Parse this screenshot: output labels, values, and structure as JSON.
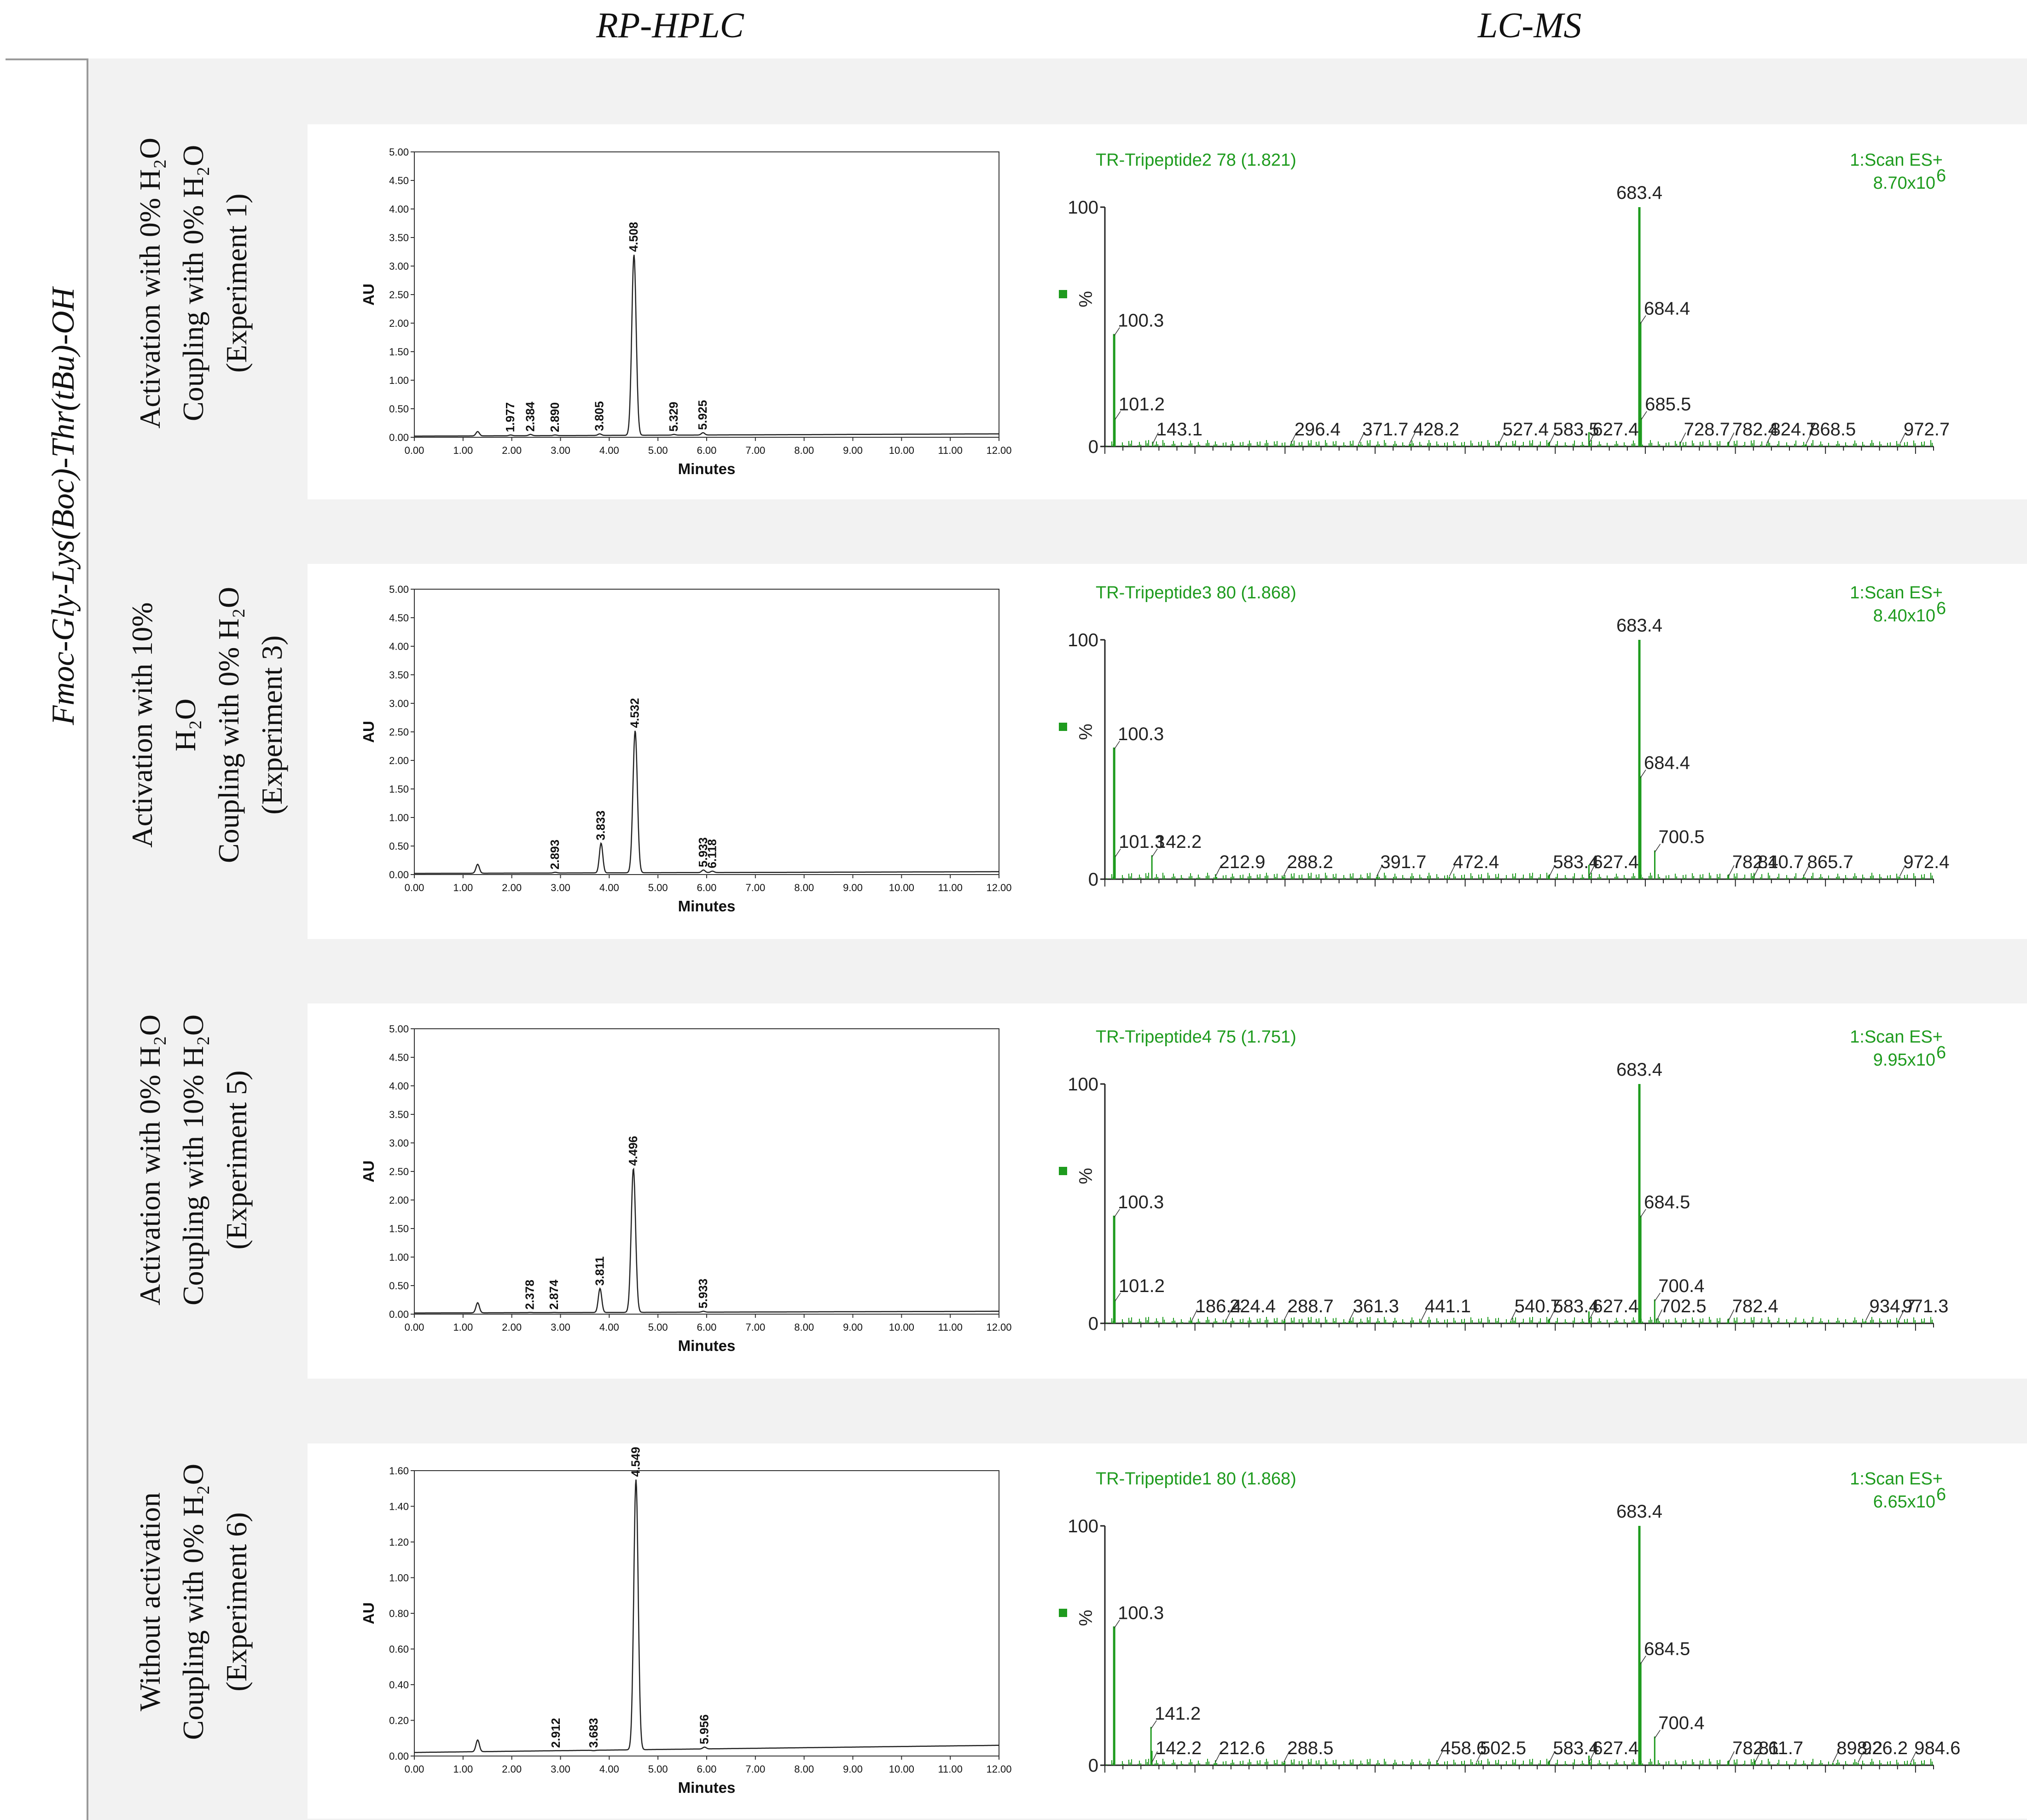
{
  "header": {
    "col_hplc": "RP-HPLC",
    "col_lcms": "LC-MS"
  },
  "peptide": "Fmoc-Gly-Lys(Boc)-Thr(tBu)-OH",
  "rows": [
    {
      "label_lines": [
        "Activation with 0% H₂O",
        "Coupling with 0% H₂O",
        "(Experiment 1)"
      ]
    },
    {
      "label_lines": [
        "Activation with 10%",
        "H₂O",
        "Coupling with 0% H₂O",
        "(Experiment 3)"
      ]
    },
    {
      "label_lines": [
        "Activation with 0% H₂O",
        "Coupling with 10% H₂O",
        "(Experiment 5)"
      ]
    },
    {
      "label_lines": [
        "Without activation",
        "Coupling with 0% H₂O",
        "(Experiment 6)"
      ]
    }
  ],
  "chart_data": [
    {
      "type": "line",
      "panel": "RP-HPLC Experiment 1",
      "xlabel": "Minutes",
      "ylabel": "AU",
      "xlim": [
        0,
        12
      ],
      "ylim": [
        0,
        5
      ],
      "xticks": [
        "0.00",
        "1.00",
        "2.00",
        "3.00",
        "4.00",
        "5.00",
        "6.00",
        "7.00",
        "8.00",
        "9.00",
        "10.00",
        "11.00",
        "12.00"
      ],
      "yticks": [
        "0.00",
        "0.50",
        "1.00",
        "1.50",
        "2.00",
        "2.50",
        "3.00",
        "3.50",
        "4.00",
        "4.50",
        "5.00"
      ],
      "baseline": [
        [
          0,
          0.02
        ],
        [
          12,
          0.06
        ]
      ],
      "peaks": [
        {
          "x": 1.3,
          "y": 0.1,
          "label": ""
        },
        {
          "x": 1.977,
          "y": 0.04,
          "label": "1.977"
        },
        {
          "x": 2.384,
          "y": 0.05,
          "label": "2.384"
        },
        {
          "x": 2.89,
          "y": 0.04,
          "label": "2.890"
        },
        {
          "x": 3.805,
          "y": 0.06,
          "label": "3.805"
        },
        {
          "x": 4.508,
          "y": 3.2,
          "label": "4.508"
        },
        {
          "x": 5.329,
          "y": 0.05,
          "label": "5.329"
        },
        {
          "x": 5.925,
          "y": 0.08,
          "label": "5.925"
        }
      ]
    },
    {
      "type": "line",
      "panel": "RP-HPLC Experiment 3",
      "xlabel": "Minutes",
      "ylabel": "AU",
      "xlim": [
        0,
        12
      ],
      "ylim": [
        0,
        5
      ],
      "xticks": [
        "0.00",
        "1.00",
        "2.00",
        "3.00",
        "4.00",
        "5.00",
        "6.00",
        "7.00",
        "8.00",
        "9.00",
        "10.00",
        "11.00",
        "12.00"
      ],
      "yticks": [
        "0.00",
        "0.50",
        "1.00",
        "1.50",
        "2.00",
        "2.50",
        "3.00",
        "3.50",
        "4.00",
        "4.50",
        "5.00"
      ],
      "baseline": [
        [
          0,
          0.02
        ],
        [
          12,
          0.05
        ]
      ],
      "peaks": [
        {
          "x": 1.3,
          "y": 0.18,
          "label": ""
        },
        {
          "x": 2.893,
          "y": 0.04,
          "label": "2.893"
        },
        {
          "x": 3.833,
          "y": 0.55,
          "label": "3.833"
        },
        {
          "x": 4.532,
          "y": 2.52,
          "label": "4.532"
        },
        {
          "x": 5.933,
          "y": 0.08,
          "label": "5.933"
        },
        {
          "x": 6.118,
          "y": 0.06,
          "label": "6.118"
        }
      ]
    },
    {
      "type": "line",
      "panel": "RP-HPLC Experiment 5",
      "xlabel": "Minutes",
      "ylabel": "AU",
      "xlim": [
        0,
        12
      ],
      "ylim": [
        0,
        5
      ],
      "xticks": [
        "0.00",
        "1.00",
        "2.00",
        "3.00",
        "4.00",
        "5.00",
        "6.00",
        "7.00",
        "8.00",
        "9.00",
        "10.00",
        "11.00",
        "12.00"
      ],
      "yticks": [
        "0.00",
        "0.50",
        "1.00",
        "1.50",
        "2.00",
        "2.50",
        "3.00",
        "3.50",
        "4.00",
        "4.50",
        "5.00"
      ],
      "baseline": [
        [
          0,
          0.02
        ],
        [
          12,
          0.05
        ]
      ],
      "peaks": [
        {
          "x": 1.3,
          "y": 0.2,
          "label": ""
        },
        {
          "x": 2.378,
          "y": 0.03,
          "label": "2.378"
        },
        {
          "x": 2.874,
          "y": 0.03,
          "label": "2.874"
        },
        {
          "x": 3.811,
          "y": 0.45,
          "label": "3.811"
        },
        {
          "x": 4.496,
          "y": 2.55,
          "label": "4.496"
        },
        {
          "x": 5.933,
          "y": 0.05,
          "label": "5.933"
        }
      ]
    },
    {
      "type": "line",
      "panel": "RP-HPLC Experiment 6",
      "xlabel": "Minutes",
      "ylabel": "AU",
      "xlim": [
        0,
        12
      ],
      "ylim": [
        0,
        1.6
      ],
      "xticks": [
        "0.00",
        "1.00",
        "2.00",
        "3.00",
        "4.00",
        "5.00",
        "6.00",
        "7.00",
        "8.00",
        "9.00",
        "10.00",
        "11.00",
        "12.00"
      ],
      "yticks": [
        "0.00",
        "0.20",
        "0.40",
        "0.60",
        "0.80",
        "1.00",
        "1.20",
        "1.40",
        "1.60"
      ],
      "baseline": [
        [
          0,
          0.02
        ],
        [
          12,
          0.06
        ]
      ],
      "peaks": [
        {
          "x": 1.3,
          "y": 0.09,
          "label": ""
        },
        {
          "x": 2.912,
          "y": 0.03,
          "label": "2.912"
        },
        {
          "x": 3.683,
          "y": 0.03,
          "label": "3.683"
        },
        {
          "x": 4.549,
          "y": 1.55,
          "label": "4.549"
        },
        {
          "x": 5.956,
          "y": 0.05,
          "label": "5.956"
        }
      ]
    },
    {
      "type": "bar",
      "panel": "LC-MS Experiment 1",
      "sample": "TR-Tripeptide2 78 (1.821)",
      "scan": "1:Scan ES+",
      "intensity_mantissa": "8.70x10",
      "intensity_exp": "6",
      "ylabel": "%",
      "yticks": [
        "0",
        "100"
      ],
      "xlim": [
        90,
        1010
      ],
      "ylim": [
        0,
        100
      ],
      "peaks": [
        {
          "x": 100.3,
          "y": 47,
          "label": "100.3"
        },
        {
          "x": 101.2,
          "y": 12,
          "label": "101.2"
        },
        {
          "x": 143.1,
          "y": 2,
          "label": "143.1"
        },
        {
          "x": 296.4,
          "y": 1,
          "label": "296.4"
        },
        {
          "x": 371.7,
          "y": 1,
          "label": "371.7"
        },
        {
          "x": 428.2,
          "y": 1,
          "label": "428.2"
        },
        {
          "x": 527.4,
          "y": 2,
          "label": "527.4"
        },
        {
          "x": 583.5,
          "y": 2,
          "label": "583.5"
        },
        {
          "x": 627.4,
          "y": 6,
          "label": "627.4"
        },
        {
          "x": 683.4,
          "y": 100,
          "label": "683.4"
        },
        {
          "x": 684.4,
          "y": 52,
          "label": "684.4"
        },
        {
          "x": 685.5,
          "y": 12,
          "label": "685.5"
        },
        {
          "x": 728.7,
          "y": 2,
          "label": "728.7"
        },
        {
          "x": 782.4,
          "y": 2,
          "label": "782.4"
        },
        {
          "x": 824.7,
          "y": 1,
          "label": "824.7"
        },
        {
          "x": 868.5,
          "y": 1,
          "label": "868.5"
        },
        {
          "x": 972.7,
          "y": 1,
          "label": "972.7"
        }
      ]
    },
    {
      "type": "bar",
      "panel": "LC-MS Experiment 3",
      "sample": "TR-Tripeptide3 80 (1.868)",
      "scan": "1:Scan ES+",
      "intensity_mantissa": "8.40x10",
      "intensity_exp": "6",
      "ylabel": "%",
      "yticks": [
        "0",
        "100"
      ],
      "xlim": [
        90,
        1010
      ],
      "ylim": [
        0,
        100
      ],
      "peaks": [
        {
          "x": 100.3,
          "y": 55,
          "label": "100.3"
        },
        {
          "x": 101.3,
          "y": 10,
          "label": "101.3"
        },
        {
          "x": 142.2,
          "y": 10,
          "label": "142.2"
        },
        {
          "x": 212.9,
          "y": 1,
          "label": "212.9"
        },
        {
          "x": 288.2,
          "y": 1,
          "label": "288.2"
        },
        {
          "x": 391.7,
          "y": 1,
          "label": "391.7"
        },
        {
          "x": 472.4,
          "y": 1,
          "label": "472.4"
        },
        {
          "x": 583.4,
          "y": 2,
          "label": "583.4"
        },
        {
          "x": 627.4,
          "y": 6,
          "label": "627.4"
        },
        {
          "x": 683.4,
          "y": 100,
          "label": "683.4"
        },
        {
          "x": 684.4,
          "y": 43,
          "label": "684.4"
        },
        {
          "x": 700.5,
          "y": 12,
          "label": "700.5"
        },
        {
          "x": 782.4,
          "y": 2,
          "label": "782.4"
        },
        {
          "x": 810.7,
          "y": 2,
          "label": "810.7"
        },
        {
          "x": 865.7,
          "y": 1,
          "label": "865.7"
        },
        {
          "x": 972.4,
          "y": 1,
          "label": "972.4"
        }
      ]
    },
    {
      "type": "bar",
      "panel": "LC-MS Experiment 5",
      "sample": "TR-Tripeptide4 75 (1.751)",
      "scan": "1:Scan ES+",
      "intensity_mantissa": "9.95x10",
      "intensity_exp": "6",
      "ylabel": "%",
      "yticks": [
        "0",
        "100"
      ],
      "xlim": [
        90,
        1010
      ],
      "ylim": [
        0,
        100
      ],
      "peaks": [
        {
          "x": 100.3,
          "y": 45,
          "label": "100.3"
        },
        {
          "x": 101.2,
          "y": 10,
          "label": "101.2"
        },
        {
          "x": 186.4,
          "y": 1,
          "label": "186.4"
        },
        {
          "x": 224.4,
          "y": 1,
          "label": "224.4"
        },
        {
          "x": 288.7,
          "y": 1,
          "label": "288.7"
        },
        {
          "x": 361.3,
          "y": 1,
          "label": "361.3"
        },
        {
          "x": 441.1,
          "y": 1,
          "label": "441.1"
        },
        {
          "x": 540.7,
          "y": 1,
          "label": "540.7"
        },
        {
          "x": 583.4,
          "y": 2,
          "label": "583.4"
        },
        {
          "x": 627.4,
          "y": 5,
          "label": "627.4"
        },
        {
          "x": 683.4,
          "y": 100,
          "label": "683.4"
        },
        {
          "x": 684.5,
          "y": 45,
          "label": "684.5"
        },
        {
          "x": 700.4,
          "y": 10,
          "label": "700.4"
        },
        {
          "x": 702.5,
          "y": 2,
          "label": "702.5"
        },
        {
          "x": 782.4,
          "y": 2,
          "label": "782.4"
        },
        {
          "x": 934.7,
          "y": 1,
          "label": "934.7"
        },
        {
          "x": 971.3,
          "y": 1,
          "label": "971.3"
        }
      ]
    },
    {
      "type": "bar",
      "panel": "LC-MS Experiment 6",
      "sample": "TR-Tripeptide1 80 (1.868)",
      "scan": "1:Scan ES+",
      "intensity_mantissa": "6.65x10",
      "intensity_exp": "6",
      "ylabel": "%",
      "yticks": [
        "0",
        "100"
      ],
      "xlim": [
        90,
        1010
      ],
      "ylim": [
        0,
        100
      ],
      "peaks": [
        {
          "x": 100.3,
          "y": 58,
          "label": "100.3"
        },
        {
          "x": 141.2,
          "y": 16,
          "label": "141.2"
        },
        {
          "x": 142.2,
          "y": 6,
          "label": "142.2"
        },
        {
          "x": 212.6,
          "y": 1,
          "label": "212.6"
        },
        {
          "x": 288.5,
          "y": 1,
          "label": "288.5"
        },
        {
          "x": 458.6,
          "y": 1,
          "label": "458.6"
        },
        {
          "x": 502.5,
          "y": 1,
          "label": "502.5"
        },
        {
          "x": 583.4,
          "y": 2,
          "label": "583.4"
        },
        {
          "x": 627.4,
          "y": 4,
          "label": "627.4"
        },
        {
          "x": 683.4,
          "y": 100,
          "label": "683.4"
        },
        {
          "x": 684.5,
          "y": 43,
          "label": "684.5"
        },
        {
          "x": 700.4,
          "y": 12,
          "label": "700.4"
        },
        {
          "x": 782.6,
          "y": 2,
          "label": "782.6"
        },
        {
          "x": 811.7,
          "y": 2,
          "label": "811.7"
        },
        {
          "x": 898.2,
          "y": 1,
          "label": "898.2"
        },
        {
          "x": 926.2,
          "y": 1,
          "label": "926.2"
        },
        {
          "x": 984.6,
          "y": 1,
          "label": "984.6"
        }
      ]
    }
  ]
}
